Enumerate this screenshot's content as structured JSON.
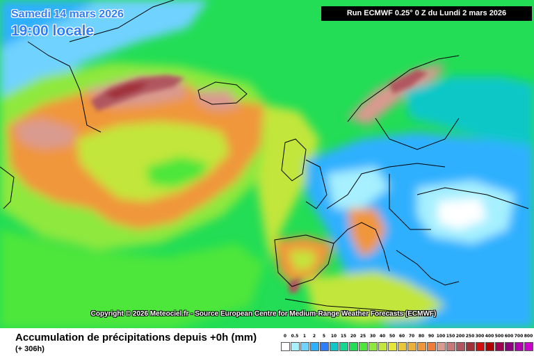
{
  "header": {
    "date_text": "Samedi 14 mars 2026",
    "time_text": "19:00 locale",
    "run_text": "Run ECMWF 0.25° 0 Z du Lundi 2 mars 2026"
  },
  "copyright_text": "Copyright © 2026 Meteociel.fr - Source European Centre for Medium-Range Weather Forecasts (ECMWF)",
  "footer": {
    "title": "Accumulation de précipitations depuis +0h (mm)",
    "subtitle": "(+ 306h)"
  },
  "legend": {
    "labels": [
      "0",
      "0.5",
      "1",
      "2",
      "5",
      "10",
      "15",
      "20",
      "25",
      "30",
      "40",
      "50",
      "60",
      "70",
      "80",
      "90",
      "100",
      "150",
      "200",
      "250",
      "300",
      "400",
      "500",
      "600",
      "700",
      "800"
    ],
    "colors": [
      "#ffffff",
      "#a6f0ff",
      "#6fd2ff",
      "#2fb0ff",
      "#2d7dff",
      "#10c7c7",
      "#14d890",
      "#22dd55",
      "#4ee63a",
      "#8ee83e",
      "#c2e63b",
      "#e6e63a",
      "#e6c83a",
      "#ebb03a",
      "#f0963a",
      "#f07a3a",
      "#d99a8f",
      "#c7787a",
      "#b0565e",
      "#a0303a",
      "#d01010",
      "#b00000",
      "#a00050",
      "#8c0080",
      "#b000b0",
      "#cc00cc"
    ]
  },
  "map_colors": {
    "sea_base": "#22dd55",
    "snow_cap": "#6fd2ff",
    "orange": "#f0963a",
    "yellow": "#c2e63b",
    "green_light": "#4ee63a",
    "salmon": "#d99a8f",
    "dark_red": "#b0565e",
    "blue": "#2fb0ff",
    "light_blue": "#a6f0ff",
    "white": "#ffffff",
    "border": "#000000"
  }
}
